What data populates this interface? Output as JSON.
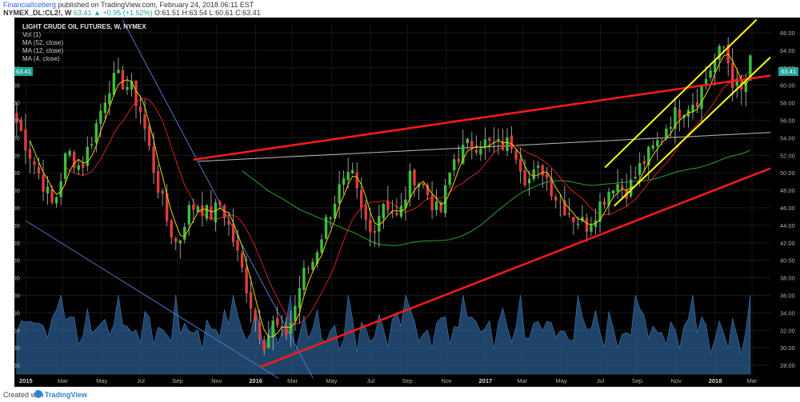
{
  "header": {
    "author": "FinancialIceberg",
    "published_line": "published on TradingView.com, February 24, 2018 06:11 EST",
    "symbol_line": "NYMEX_DL:CL2!, W",
    "change_text": "63.41 ▲ +0.95 (+1.52%)",
    "ohlc_text": "O:61.51 H:63.54 L:60.61 C:63.41"
  },
  "legend": {
    "title": "LIGHT CRUDE OIL FUTURES, W, NYMEX",
    "items": [
      "Vol (1)",
      "MA (52, close)",
      "MA (12, close)",
      "MA (4, close)"
    ]
  },
  "price_badge": "63.41",
  "footer": {
    "created_with": "Created with",
    "brand": "TradingView"
  },
  "colors": {
    "up": "#26a69a",
    "down": "#ef5350",
    "up_candle": "#3cbf3c",
    "down_candle": "#e23b3b",
    "ma52": "#29a329",
    "ma12": "#cc2222",
    "ma4": "#e6d200",
    "volume": "#2b5b8c",
    "trend_red": "#ff1a1a",
    "channel_yellow": "#ffff00",
    "blue_line": "#4a78c2",
    "gray_line": "#bdbdbd"
  },
  "chart_data": {
    "type": "candlestick",
    "title": "LIGHT CRUDE OIL FUTURES, W, NYMEX",
    "x_ticks": [
      "2015",
      "Mar",
      "May",
      "Jul",
      "Sep",
      "Nov",
      "2016",
      "Mar",
      "May",
      "Jul",
      "Sep",
      "Nov",
      "2017",
      "Mar",
      "May",
      "Jul",
      "Sep",
      "Nov",
      "2018",
      "Mar"
    ],
    "y_ticks": [
      28,
      30,
      32,
      34,
      36,
      38,
      40,
      42,
      44,
      46,
      48,
      50,
      52,
      54,
      56,
      58,
      60,
      62,
      64,
      66
    ],
    "ylim": [
      27,
      67
    ],
    "close_path": [
      [
        2014.95,
        56.5
      ],
      [
        2015.02,
        52.0
      ],
      [
        2015.08,
        48.5
      ],
      [
        2015.12,
        46.0
      ],
      [
        2015.18,
        52.5
      ],
      [
        2015.24,
        50.5
      ],
      [
        2015.3,
        55.0
      ],
      [
        2015.36,
        60.0
      ],
      [
        2015.4,
        60.8
      ],
      [
        2015.46,
        59.5
      ],
      [
        2015.5,
        57.0
      ],
      [
        2015.56,
        50.0
      ],
      [
        2015.62,
        44.0
      ],
      [
        2015.66,
        41.5
      ],
      [
        2015.7,
        45.5
      ],
      [
        2015.75,
        46.5
      ],
      [
        2015.8,
        45.0
      ],
      [
        2015.85,
        46.5
      ],
      [
        2015.9,
        42.5
      ],
      [
        2015.95,
        38.0
      ],
      [
        2016.0,
        33.0
      ],
      [
        2016.04,
        30.5
      ],
      [
        2016.08,
        33.0
      ],
      [
        2016.12,
        31.0
      ],
      [
        2016.16,
        33.5
      ],
      [
        2016.2,
        38.0
      ],
      [
        2016.25,
        40.0
      ],
      [
        2016.3,
        44.0
      ],
      [
        2016.36,
        48.0
      ],
      [
        2016.42,
        49.5
      ],
      [
        2016.46,
        45.5
      ],
      [
        2016.5,
        43.0
      ],
      [
        2016.56,
        47.0
      ],
      [
        2016.62,
        44.5
      ],
      [
        2016.68,
        50.0
      ],
      [
        2016.74,
        48.0
      ],
      [
        2016.8,
        45.0
      ],
      [
        2016.86,
        51.5
      ],
      [
        2016.92,
        53.0
      ],
      [
        2016.98,
        53.5
      ],
      [
        2017.05,
        53.0
      ],
      [
        2017.12,
        53.5
      ],
      [
        2017.18,
        49.0
      ],
      [
        2017.25,
        50.5
      ],
      [
        2017.3,
        47.5
      ],
      [
        2017.38,
        45.0
      ],
      [
        2017.44,
        44.0
      ],
      [
        2017.5,
        46.5
      ],
      [
        2017.56,
        49.0
      ],
      [
        2017.62,
        48.0
      ],
      [
        2017.68,
        51.0
      ],
      [
        2017.74,
        53.0
      ],
      [
        2017.8,
        56.0
      ],
      [
        2017.86,
        57.5
      ],
      [
        2017.92,
        58.5
      ],
      [
        2017.98,
        62.0
      ],
      [
        2018.04,
        64.5
      ],
      [
        2018.08,
        60.0
      ],
      [
        2018.12,
        59.0
      ],
      [
        2018.16,
        63.41
      ]
    ],
    "last_close": 63.41
  }
}
